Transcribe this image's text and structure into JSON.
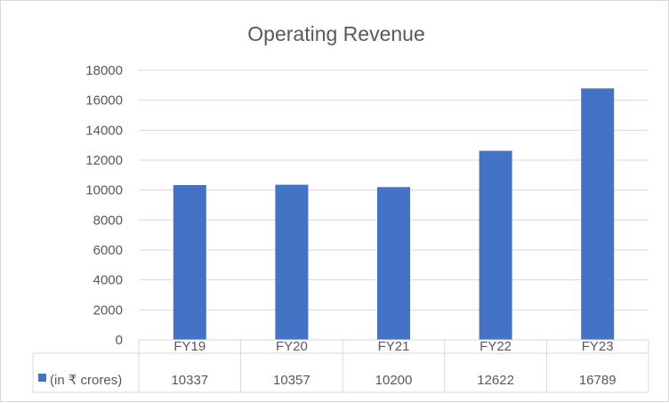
{
  "chart_data": {
    "type": "bar",
    "title": "Operating Revenue",
    "categories": [
      "FY19",
      "FY20",
      "FY21",
      "FY22",
      "FY23"
    ],
    "series": [
      {
        "name": "(in ₹ crores)",
        "values": [
          10337,
          10357,
          10200,
          12622,
          16789
        ],
        "color": "#4472c4"
      }
    ],
    "ylim": [
      0,
      18000
    ],
    "yticks": [
      0,
      2000,
      4000,
      6000,
      8000,
      10000,
      12000,
      14000,
      16000,
      18000
    ],
    "xlabel": "",
    "ylabel": "",
    "grid": true,
    "data_table": true
  }
}
